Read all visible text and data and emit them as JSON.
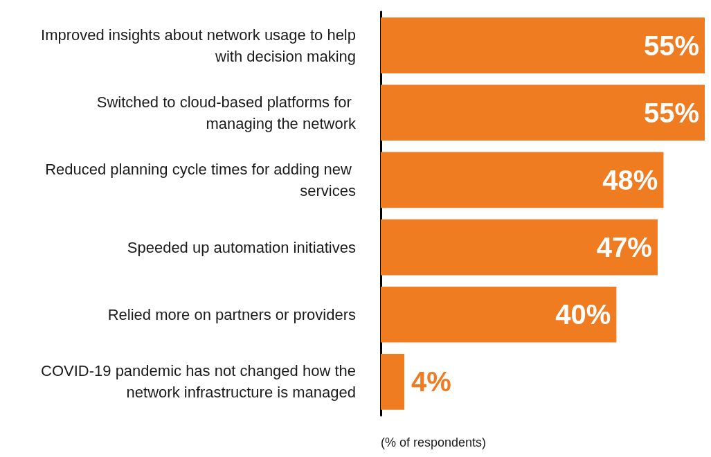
{
  "chart_data": {
    "type": "bar",
    "orientation": "horizontal",
    "xlabel": "(% of respondents)",
    "categories": [
      "Improved insights about network usage to help with decision making",
      "Switched to cloud-based platforms for managing the network",
      "Reduced planning cycle times for adding new services",
      "Speeded up automation initiatives",
      "Relied more on partners or providers",
      "COVID-19 pandemic has not changed how the network infrastructure is managed"
    ],
    "values": [
      55,
      55,
      48,
      47,
      40,
      4
    ],
    "value_labels": [
      "55%",
      "55%",
      "48%",
      "47%",
      "40%",
      "4%"
    ],
    "color": "#f07c22"
  }
}
